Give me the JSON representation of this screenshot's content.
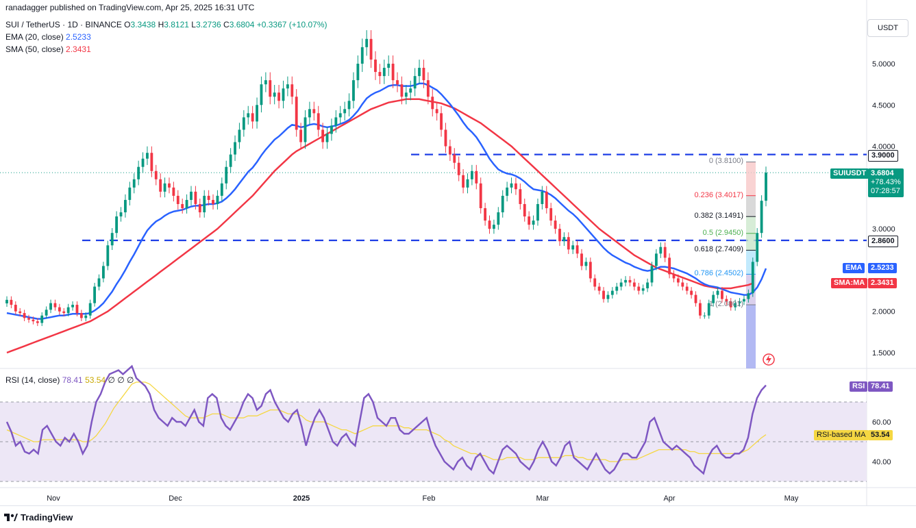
{
  "publisher": "ranadagger published on TradingView.com, Apr 25, 2025 16:31 UTC",
  "symbol_line": {
    "title": "SUI / TetherUS · 1D · BINANCE",
    "o_label": "O",
    "o": "3.3438",
    "h_label": "H",
    "h": "3.8121",
    "l_label": "L",
    "l": "3.2736",
    "c_label": "C",
    "c": "3.6804",
    "change": "+0.3367 (+10.07%)"
  },
  "ema_legend": {
    "label": "EMA (20, close)",
    "value": "2.5233"
  },
  "sma_legend": {
    "label": "SMA (50, close)",
    "value": "2.3431"
  },
  "rsi_legend": {
    "label": "RSI (14, close)",
    "value": "78.41",
    "ma_value": "53.54",
    "extra": "∅ ∅ ∅"
  },
  "currency": "USDT",
  "tags": {
    "resistance": "3.9000",
    "symbol_name": "SUIUSDT",
    "price": "3.6804",
    "pct": "+78.43%",
    "countdown": "07:28:57",
    "support": "2.8600",
    "ema_label": "EMA",
    "ema_value": "2.5233",
    "sma_label": "SMA:MA",
    "sma_value": "2.3431",
    "rsi_label": "RSI",
    "rsi_value": "78.41",
    "rsi_ma_label": "RSI-based MA",
    "rsi_ma_value": "53.54"
  },
  "fib_levels": [
    {
      "label": "0 (3.8100)",
      "price": 3.81,
      "color": "#787b86"
    },
    {
      "label": "0.236 (3.4017)",
      "price": 3.4017,
      "color": "#f23645"
    },
    {
      "label": "0.382 (3.1491)",
      "price": 3.1491,
      "color": "#131722"
    },
    {
      "label": "0.5 (2.9450)",
      "price": 2.945,
      "color": "#4caf50"
    },
    {
      "label": "0.618 (2.7409)",
      "price": 2.7409,
      "color": "#131722"
    },
    {
      "label": "0.786 (2.4502)",
      "price": 2.4502,
      "color": "#2196f3"
    },
    {
      "label": "1 (2.0801)",
      "price": 2.0801,
      "color": "#787b86"
    }
  ],
  "logo_text": "TradingView",
  "colors": {
    "up": "#089981",
    "down": "#f23645",
    "ema": "#2962ff",
    "sma": "#f23645",
    "rsi": "#7e57c2",
    "rsi_ma": "#f5d742",
    "dashed": "#1e3ee6"
  },
  "chart_data": [
    {
      "type": "candlestick",
      "title": "SUI / TetherUS · 1D · BINANCE",
      "ylim": [
        1.3,
        5.5
      ],
      "y_ticks": [
        "5.0000",
        "4.5000",
        "4.0000",
        "3.0000",
        "2.0000",
        "1.5000"
      ],
      "x_ticks": [
        "Nov",
        "Dec",
        "2025",
        "Feb",
        "Mar",
        "Apr",
        "May"
      ],
      "horizontal_levels": [
        3.9,
        2.86
      ],
      "close": [
        2.14,
        2.08,
        2.0,
        1.98,
        1.92,
        1.9,
        1.88,
        1.86,
        1.95,
        2.02,
        2.1,
        2.05,
        2.0,
        1.98,
        2.05,
        2.08,
        1.98,
        1.92,
        1.95,
        2.1,
        2.3,
        2.4,
        2.55,
        2.8,
        2.95,
        3.15,
        3.2,
        3.35,
        3.5,
        3.6,
        3.75,
        3.85,
        3.92,
        3.7,
        3.6,
        3.45,
        3.55,
        3.5,
        3.4,
        3.3,
        3.25,
        3.35,
        3.45,
        3.3,
        3.2,
        3.4,
        3.35,
        3.3,
        3.4,
        3.55,
        3.75,
        3.9,
        4.05,
        4.2,
        4.35,
        4.4,
        4.3,
        4.5,
        4.75,
        4.8,
        4.6,
        4.65,
        4.55,
        4.7,
        4.75,
        4.6,
        4.2,
        4.05,
        4.35,
        4.45,
        4.4,
        4.2,
        4.05,
        4.15,
        4.25,
        4.35,
        4.4,
        4.45,
        4.55,
        4.8,
        5.0,
        5.2,
        5.3,
        5.05,
        4.9,
        4.85,
        4.95,
        5.0,
        4.8,
        4.75,
        4.6,
        4.65,
        4.7,
        4.85,
        4.95,
        4.8,
        4.6,
        4.45,
        4.4,
        4.2,
        4.0,
        3.9,
        3.8,
        3.65,
        3.5,
        3.6,
        3.7,
        3.55,
        3.25,
        3.1,
        3.0,
        3.05,
        3.2,
        3.4,
        3.5,
        3.55,
        3.48,
        3.3,
        3.15,
        3.05,
        3.1,
        3.3,
        3.45,
        3.25,
        3.1,
        3.0,
        2.85,
        2.9,
        2.75,
        2.8,
        2.7,
        2.55,
        2.6,
        2.4,
        2.3,
        2.25,
        2.15,
        2.2,
        2.25,
        2.3,
        2.35,
        2.38,
        2.35,
        2.3,
        2.25,
        2.28,
        2.35,
        2.55,
        2.7,
        2.78,
        2.65,
        2.45,
        2.4,
        2.35,
        2.3,
        2.25,
        2.2,
        2.1,
        1.95,
        1.95,
        2.1,
        2.2,
        2.25,
        2.15,
        2.12,
        2.05,
        2.1,
        2.12,
        2.15,
        2.22,
        2.6,
        2.95,
        3.34,
        3.68
      ],
      "ema20": [
        1.98,
        1.97,
        1.96,
        1.95,
        1.94,
        1.93,
        1.92,
        1.91,
        1.91,
        1.92,
        1.93,
        1.94,
        1.95,
        1.95,
        1.96,
        1.97,
        1.97,
        1.97,
        1.97,
        1.98,
        2.01,
        2.05,
        2.1,
        2.17,
        2.24,
        2.33,
        2.41,
        2.5,
        2.6,
        2.69,
        2.79,
        2.89,
        2.98,
        3.04,
        3.09,
        3.12,
        3.16,
        3.19,
        3.21,
        3.22,
        3.23,
        3.25,
        3.27,
        3.28,
        3.28,
        3.29,
        3.3,
        3.3,
        3.31,
        3.33,
        3.37,
        3.42,
        3.48,
        3.55,
        3.62,
        3.69,
        3.74,
        3.81,
        3.89,
        3.96,
        4.02,
        4.08,
        4.12,
        4.17,
        4.22,
        4.26,
        4.25,
        4.23,
        4.24,
        4.26,
        4.27,
        4.26,
        4.24,
        4.23,
        4.24,
        4.25,
        4.27,
        4.29,
        4.32,
        4.37,
        4.43,
        4.51,
        4.58,
        4.62,
        4.65,
        4.67,
        4.7,
        4.73,
        4.74,
        4.74,
        4.73,
        4.73,
        4.73,
        4.74,
        4.76,
        4.76,
        4.74,
        4.71,
        4.68,
        4.63,
        4.57,
        4.51,
        4.44,
        4.37,
        4.29,
        4.22,
        4.17,
        4.11,
        4.03,
        3.94,
        3.85,
        3.78,
        3.72,
        3.69,
        3.67,
        3.66,
        3.64,
        3.61,
        3.57,
        3.52,
        3.48,
        3.47,
        3.46,
        3.44,
        3.41,
        3.37,
        3.32,
        3.27,
        3.22,
        3.18,
        3.13,
        3.07,
        3.01,
        2.95,
        2.89,
        2.83,
        2.77,
        2.72,
        2.68,
        2.65,
        2.62,
        2.59,
        2.57,
        2.54,
        2.52,
        2.5,
        2.49,
        2.5,
        2.52,
        2.54,
        2.54,
        2.53,
        2.52,
        2.5,
        2.48,
        2.46,
        2.43,
        2.4,
        2.36,
        2.33,
        2.31,
        2.3,
        2.29,
        2.27,
        2.25,
        2.23,
        2.22,
        2.21,
        2.2,
        2.2,
        2.23,
        2.29,
        2.39,
        2.52
      ],
      "sma50": [
        1.5,
        1.52,
        1.54,
        1.56,
        1.58,
        1.6,
        1.62,
        1.64,
        1.66,
        1.68,
        1.7,
        1.72,
        1.74,
        1.76,
        1.78,
        1.8,
        1.82,
        1.84,
        1.86,
        1.88,
        1.91,
        1.94,
        1.97,
        2.0,
        2.04,
        2.08,
        2.12,
        2.16,
        2.2,
        2.24,
        2.28,
        2.32,
        2.36,
        2.4,
        2.44,
        2.48,
        2.52,
        2.56,
        2.6,
        2.64,
        2.68,
        2.72,
        2.76,
        2.8,
        2.84,
        2.88,
        2.92,
        2.96,
        3.0,
        3.05,
        3.1,
        3.15,
        3.2,
        3.25,
        3.3,
        3.35,
        3.4,
        3.46,
        3.52,
        3.58,
        3.64,
        3.7,
        3.75,
        3.8,
        3.85,
        3.9,
        3.94,
        3.97,
        4.0,
        4.03,
        4.06,
        4.09,
        4.12,
        4.15,
        4.18,
        4.21,
        4.24,
        4.27,
        4.3,
        4.33,
        4.36,
        4.39,
        4.42,
        4.45,
        4.47,
        4.49,
        4.51,
        4.53,
        4.54,
        4.55,
        4.56,
        4.57,
        4.57,
        4.57,
        4.57,
        4.56,
        4.55,
        4.54,
        4.53,
        4.52,
        4.5,
        4.48,
        4.46,
        4.43,
        4.4,
        4.37,
        4.34,
        4.31,
        4.28,
        4.24,
        4.2,
        4.16,
        4.12,
        4.08,
        4.04,
        4.0,
        3.95,
        3.9,
        3.85,
        3.8,
        3.75,
        3.7,
        3.65,
        3.6,
        3.55,
        3.5,
        3.45,
        3.4,
        3.35,
        3.3,
        3.25,
        3.2,
        3.15,
        3.1,
        3.05,
        3.0,
        2.96,
        2.92,
        2.88,
        2.84,
        2.8,
        2.76,
        2.72,
        2.68,
        2.65,
        2.62,
        2.59,
        2.56,
        2.53,
        2.51,
        2.49,
        2.47,
        2.45,
        2.43,
        2.41,
        2.39,
        2.37,
        2.35,
        2.33,
        2.31,
        2.3,
        2.29,
        2.28,
        2.28,
        2.28,
        2.28,
        2.29,
        2.3,
        2.31,
        2.32,
        2.34
      ]
    },
    {
      "type": "line",
      "title": "RSI (14, close)",
      "ylim": [
        30,
        90
      ],
      "y_ticks": [
        "60.00",
        "40.00"
      ],
      "bands": [
        30,
        70
      ],
      "rsi": [
        60,
        55,
        48,
        50,
        45,
        44,
        46,
        44,
        56,
        58,
        54,
        50,
        48,
        52,
        50,
        54,
        50,
        44,
        48,
        60,
        70,
        74,
        80,
        84,
        85,
        86,
        84,
        86,
        88,
        82,
        80,
        78,
        74,
        66,
        62,
        60,
        58,
        62,
        60,
        60,
        58,
        62,
        66,
        60,
        58,
        72,
        74,
        72,
        62,
        58,
        56,
        60,
        64,
        70,
        74,
        72,
        66,
        68,
        74,
        76,
        70,
        66,
        62,
        60,
        64,
        66,
        58,
        48,
        56,
        62,
        66,
        62,
        56,
        50,
        48,
        52,
        54,
        50,
        48,
        60,
        72,
        74,
        70,
        62,
        60,
        58,
        62,
        62,
        56,
        54,
        54,
        56,
        58,
        60,
        62,
        54,
        48,
        44,
        40,
        38,
        36,
        40,
        42,
        38,
        36,
        42,
        44,
        40,
        36,
        34,
        40,
        46,
        48,
        46,
        44,
        40,
        38,
        36,
        40,
        46,
        50,
        46,
        40,
        38,
        42,
        48,
        50,
        42,
        40,
        38,
        36,
        40,
        44,
        40,
        36,
        34,
        36,
        40,
        44,
        44,
        42,
        42,
        46,
        50,
        60,
        62,
        56,
        50,
        48,
        46,
        48,
        46,
        44,
        42,
        38,
        36,
        34,
        42,
        46,
        48,
        44,
        42,
        42,
        44,
        44,
        46,
        52,
        64,
        72,
        76,
        78.41
      ],
      "rsi_ma": [
        56,
        55,
        54,
        53,
        52,
        51,
        50,
        50,
        51,
        51,
        51,
        51,
        51,
        51,
        51,
        51,
        51,
        50,
        50,
        51,
        53,
        56,
        59,
        63,
        67,
        70,
        73,
        76,
        79,
        80,
        80,
        80,
        79,
        77,
        75,
        73,
        71,
        69,
        67,
        65,
        63,
        62,
        62,
        62,
        62,
        63,
        64,
        64,
        64,
        63,
        62,
        62,
        62,
        62,
        63,
        63,
        63,
        64,
        65,
        66,
        66,
        66,
        65,
        64,
        64,
        64,
        63,
        61,
        60,
        60,
        60,
        60,
        59,
        58,
        57,
        56,
        56,
        55,
        54,
        55,
        56,
        57,
        58,
        58,
        58,
        58,
        58,
        58,
        58,
        57,
        57,
        56,
        56,
        56,
        56,
        55,
        54,
        53,
        51,
        50,
        48,
        47,
        46,
        45,
        44,
        44,
        43,
        43,
        42,
        41,
        41,
        41,
        42,
        42,
        42,
        42,
        41,
        41,
        41,
        42,
        42,
        42,
        42,
        42,
        42,
        43,
        43,
        43,
        42,
        42,
        41,
        41,
        41,
        41,
        41,
        40,
        40,
        40,
        41,
        41,
        41,
        41,
        42,
        43,
        44,
        45,
        46,
        46,
        46,
        46,
        46,
        46,
        46,
        45,
        45,
        44,
        44,
        44,
        44,
        44,
        44,
        44,
        44,
        44,
        44,
        45,
        46,
        48,
        50,
        52,
        53.54
      ]
    }
  ]
}
